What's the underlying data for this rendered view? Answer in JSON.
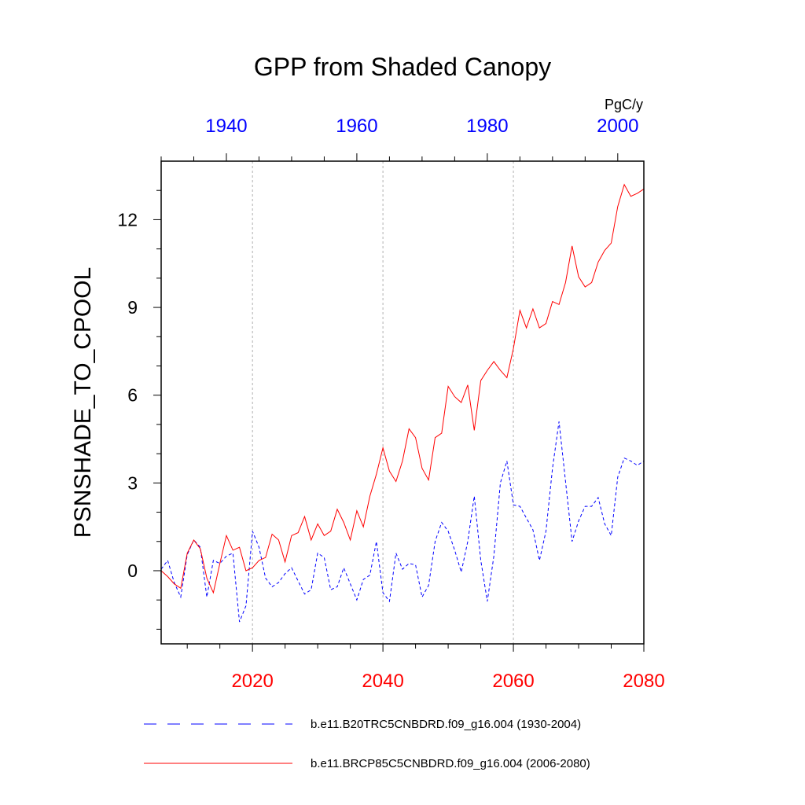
{
  "chart_data": {
    "type": "line",
    "title": "GPP from Shaded Canopy",
    "ylabel": "PSNSHADE_TO_CPOOL",
    "units": "PgC/y",
    "ylim": [
      -2.5,
      14
    ],
    "yticks": [
      0,
      3,
      6,
      9,
      12
    ],
    "x_bottom": {
      "lim": [
        2006,
        2080
      ],
      "ticks": [
        2020,
        2040,
        2060,
        2080
      ],
      "color": "#ff0000"
    },
    "x_top": {
      "lim": [
        1930,
        2004
      ],
      "ticks": [
        1940,
        1960,
        1980,
        2000
      ],
      "color": "#0000ff"
    },
    "reference_lines_x": [
      2020,
      2040,
      2060
    ],
    "series": [
      {
        "name": "b.e11.B20TRC5CNBDRD.f09_g16.004 (1930-2004)",
        "color": "#0000ff",
        "style": "dashed",
        "axis": "top",
        "x": [
          1930,
          1931,
          1932,
          1933,
          1934,
          1935,
          1936,
          1937,
          1938,
          1939,
          1940,
          1941,
          1942,
          1943,
          1944,
          1945,
          1946,
          1947,
          1948,
          1949,
          1950,
          1951,
          1952,
          1953,
          1954,
          1955,
          1956,
          1957,
          1958,
          1959,
          1960,
          1961,
          1962,
          1963,
          1964,
          1965,
          1966,
          1967,
          1968,
          1969,
          1970,
          1971,
          1972,
          1973,
          1974,
          1975,
          1976,
          1977,
          1978,
          1979,
          1980,
          1981,
          1982,
          1983,
          1984,
          1985,
          1986,
          1987,
          1988,
          1989,
          1990,
          1991,
          1992,
          1993,
          1994,
          1995,
          1996,
          1997,
          1998,
          1999,
          2000,
          2001,
          2002,
          2003,
          2004
        ],
        "values": [
          0.05,
          0.35,
          -0.4,
          -0.9,
          0.55,
          1.05,
          0.8,
          -0.9,
          0.35,
          0.25,
          0.5,
          0.6,
          -1.75,
          -1.2,
          1.35,
          0.8,
          -0.25,
          -0.55,
          -0.4,
          -0.1,
          0.1,
          -0.35,
          -0.8,
          -0.65,
          0.6,
          0.45,
          -0.65,
          -0.55,
          0.1,
          -0.45,
          -1.0,
          -0.3,
          -0.15,
          1.0,
          -0.75,
          -1.05,
          0.6,
          0.05,
          0.25,
          0.2,
          -0.9,
          -0.5,
          1.0,
          1.65,
          1.35,
          0.7,
          -0.05,
          1.0,
          2.55,
          0.35,
          -1.05,
          0.5,
          3.0,
          3.75,
          2.25,
          2.2,
          1.8,
          1.4,
          0.35,
          1.35,
          3.5,
          5.1,
          3.05,
          1.0,
          1.7,
          2.2,
          2.2,
          2.5,
          1.6,
          1.2,
          3.2,
          3.85,
          3.75,
          3.6,
          3.75
        ]
      },
      {
        "name": "b.e11.BRCP85C5CNBDRD.f09_g16.004 (2006-2080)",
        "color": "#ff0000",
        "style": "solid",
        "axis": "bottom",
        "x": [
          2006,
          2007,
          2008,
          2009,
          2010,
          2011,
          2012,
          2013,
          2014,
          2015,
          2016,
          2017,
          2018,
          2019,
          2020,
          2021,
          2022,
          2023,
          2024,
          2025,
          2026,
          2027,
          2028,
          2029,
          2030,
          2031,
          2032,
          2033,
          2034,
          2035,
          2036,
          2037,
          2038,
          2039,
          2040,
          2041,
          2042,
          2043,
          2044,
          2045,
          2046,
          2047,
          2048,
          2049,
          2050,
          2051,
          2052,
          2053,
          2054,
          2055,
          2056,
          2057,
          2058,
          2059,
          2060,
          2061,
          2062,
          2063,
          2064,
          2065,
          2066,
          2067,
          2068,
          2069,
          2070,
          2071,
          2072,
          2073,
          2074,
          2075,
          2076,
          2077,
          2078,
          2079,
          2080
        ],
        "values": [
          0.0,
          -0.2,
          -0.45,
          -0.6,
          0.6,
          1.05,
          0.75,
          -0.25,
          -0.75,
          0.25,
          1.2,
          0.7,
          0.8,
          0.0,
          0.1,
          0.35,
          0.45,
          1.25,
          1.05,
          0.3,
          1.2,
          1.3,
          1.85,
          1.05,
          1.6,
          1.2,
          1.35,
          2.1,
          1.65,
          1.05,
          2.05,
          1.5,
          2.55,
          3.3,
          4.2,
          3.4,
          3.05,
          3.75,
          4.85,
          4.55,
          3.5,
          3.1,
          4.55,
          4.7,
          6.3,
          5.95,
          5.75,
          6.35,
          4.8,
          6.5,
          6.85,
          7.15,
          6.85,
          6.6,
          7.6,
          8.9,
          8.3,
          8.95,
          8.3,
          8.45,
          9.2,
          9.1,
          9.85,
          11.1,
          10.05,
          9.7,
          9.85,
          10.55,
          10.95,
          11.2,
          12.45,
          13.2,
          12.8,
          12.9,
          13.05
        ]
      }
    ]
  }
}
